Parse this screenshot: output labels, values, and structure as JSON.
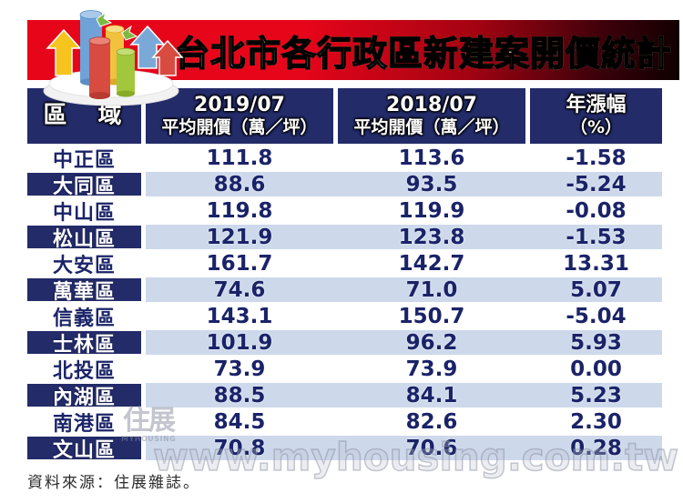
{
  "title": "台北市各行政區新建案開價統計",
  "table": {
    "district_header": "區　域",
    "columns": [
      {
        "line1": "2019/07",
        "line2": "平均開價（萬／坪）"
      },
      {
        "line1": "2018/07",
        "line2": "平均開價（萬／坪）"
      },
      {
        "line1": "年漲幅",
        "line2": "（%）"
      }
    ],
    "rows": [
      {
        "district": "中正區",
        "price_2019": "111.8",
        "price_2018": "113.6",
        "yoy": "-1.58"
      },
      {
        "district": "大同區",
        "price_2019": "88.6",
        "price_2018": "93.5",
        "yoy": "-5.24"
      },
      {
        "district": "中山區",
        "price_2019": "119.8",
        "price_2018": "119.9",
        "yoy": "-0.08"
      },
      {
        "district": "松山區",
        "price_2019": "121.9",
        "price_2018": "123.8",
        "yoy": "-1.53"
      },
      {
        "district": "大安區",
        "price_2019": "161.7",
        "price_2018": "142.7",
        "yoy": "13.31"
      },
      {
        "district": "萬華區",
        "price_2019": "74.6",
        "price_2018": "71.0",
        "yoy": "5.07"
      },
      {
        "district": "信義區",
        "price_2019": "143.1",
        "price_2018": "150.7",
        "yoy": "-5.04"
      },
      {
        "district": "士林區",
        "price_2019": "101.9",
        "price_2018": "96.2",
        "yoy": "5.93"
      },
      {
        "district": "北投區",
        "price_2019": "73.9",
        "price_2018": "73.9",
        "yoy": "0.00"
      },
      {
        "district": "內湖區",
        "price_2019": "88.5",
        "price_2018": "84.1",
        "yoy": "5.23"
      },
      {
        "district": "南港區",
        "price_2019": "84.5",
        "price_2018": "82.6",
        "yoy": "2.30"
      },
      {
        "district": "文山區",
        "price_2019": "70.8",
        "price_2018": "70.6",
        "yoy": "0.28"
      }
    ]
  },
  "source": "資料來源：住展雜誌。",
  "watermark": {
    "url_text": "www.myhousing.com.tw",
    "logo_glyphs": "住展",
    "logo_sub": "MYHOUSING"
  },
  "colors": {
    "banner_red": "#e7051a",
    "banner_dark": "#0d0000",
    "header_navy": "#232b69",
    "row_light_blue": "#cdd8eb",
    "number_navy": "#1a2368",
    "title_gold": "#f3d177"
  },
  "chart_data": {
    "type": "table",
    "title": "台北市各行政區新建案開價統計",
    "columns": [
      "區域",
      "2019/07 平均開價（萬／坪）",
      "2018/07 平均開價（萬／坪）",
      "年漲幅（%）"
    ],
    "categories": [
      "中正區",
      "大同區",
      "中山區",
      "松山區",
      "大安區",
      "萬華區",
      "信義區",
      "士林區",
      "北投區",
      "內湖區",
      "南港區",
      "文山區"
    ],
    "series": [
      {
        "name": "2019/07 平均開價（萬／坪）",
        "values": [
          111.8,
          88.6,
          119.8,
          121.9,
          161.7,
          74.6,
          143.1,
          101.9,
          73.9,
          88.5,
          84.5,
          70.8
        ]
      },
      {
        "name": "2018/07 平均開價（萬／坪）",
        "values": [
          113.6,
          93.5,
          119.9,
          123.8,
          142.7,
          71.0,
          150.7,
          96.2,
          73.9,
          84.1,
          82.6,
          70.6
        ]
      },
      {
        "name": "年漲幅（%）",
        "values": [
          -1.58,
          -5.24,
          -0.08,
          -1.53,
          13.31,
          5.07,
          -5.04,
          5.93,
          0.0,
          5.23,
          2.3,
          0.28
        ]
      }
    ],
    "source": "住展雜誌"
  }
}
